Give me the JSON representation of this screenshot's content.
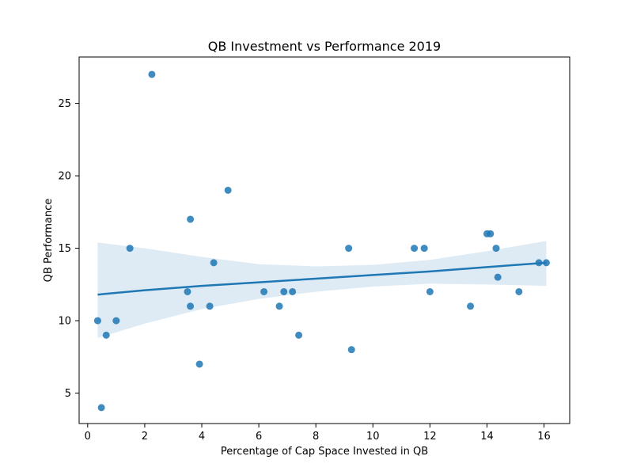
{
  "chart_data": {
    "type": "scatter",
    "title": "QB Investment vs Performance 2019",
    "xlabel": "Percentage of Cap Space Invested in QB",
    "ylabel": "QB Performance",
    "xlim": [
      -0.3,
      16.9
    ],
    "ylim": [
      2.9,
      28.2
    ],
    "xticks": [
      0,
      2,
      4,
      6,
      8,
      10,
      12,
      14,
      16
    ],
    "yticks": [
      5,
      10,
      15,
      20,
      25
    ],
    "grid": false,
    "legend": "none",
    "colors": {
      "points": "#1f77b4",
      "regression_line": "#1f77b4",
      "confidence_band": "#1f77b4"
    },
    "series": [
      {
        "points": [
          {
            "x": 0.35,
            "y": 10
          },
          {
            "x": 0.48,
            "y": 4
          },
          {
            "x": 0.65,
            "y": 9
          },
          {
            "x": 1.0,
            "y": 10
          },
          {
            "x": 1.48,
            "y": 15
          },
          {
            "x": 2.25,
            "y": 27
          },
          {
            "x": 3.5,
            "y": 12
          },
          {
            "x": 3.6,
            "y": 17
          },
          {
            "x": 3.6,
            "y": 11
          },
          {
            "x": 3.92,
            "y": 7
          },
          {
            "x": 4.28,
            "y": 11
          },
          {
            "x": 4.42,
            "y": 14
          },
          {
            "x": 4.92,
            "y": 19
          },
          {
            "x": 6.18,
            "y": 12
          },
          {
            "x": 6.72,
            "y": 11
          },
          {
            "x": 6.88,
            "y": 12
          },
          {
            "x": 7.18,
            "y": 12
          },
          {
            "x": 7.4,
            "y": 9
          },
          {
            "x": 9.15,
            "y": 15
          },
          {
            "x": 9.25,
            "y": 8
          },
          {
            "x": 11.45,
            "y": 15
          },
          {
            "x": 11.8,
            "y": 15
          },
          {
            "x": 12.0,
            "y": 12
          },
          {
            "x": 13.42,
            "y": 11
          },
          {
            "x": 14.0,
            "y": 16
          },
          {
            "x": 14.12,
            "y": 16
          },
          {
            "x": 14.32,
            "y": 15
          },
          {
            "x": 14.38,
            "y": 13
          },
          {
            "x": 15.12,
            "y": 12
          },
          {
            "x": 15.82,
            "y": 14
          },
          {
            "x": 16.08,
            "y": 14
          }
        ]
      }
    ],
    "regression": {
      "x": [
        0.35,
        2,
        4,
        6,
        8,
        10,
        12,
        14,
        16.08
      ],
      "y": [
        11.8,
        12.1,
        12.4,
        12.65,
        12.9,
        13.15,
        13.4,
        13.7,
        14.0
      ],
      "ci_lower": [
        8.8,
        9.8,
        10.8,
        11.5,
        12.0,
        12.35,
        12.55,
        12.5,
        12.4
      ],
      "ci_upper": [
        15.4,
        15.0,
        14.4,
        13.9,
        13.75,
        13.85,
        14.2,
        14.8,
        15.5
      ]
    }
  }
}
